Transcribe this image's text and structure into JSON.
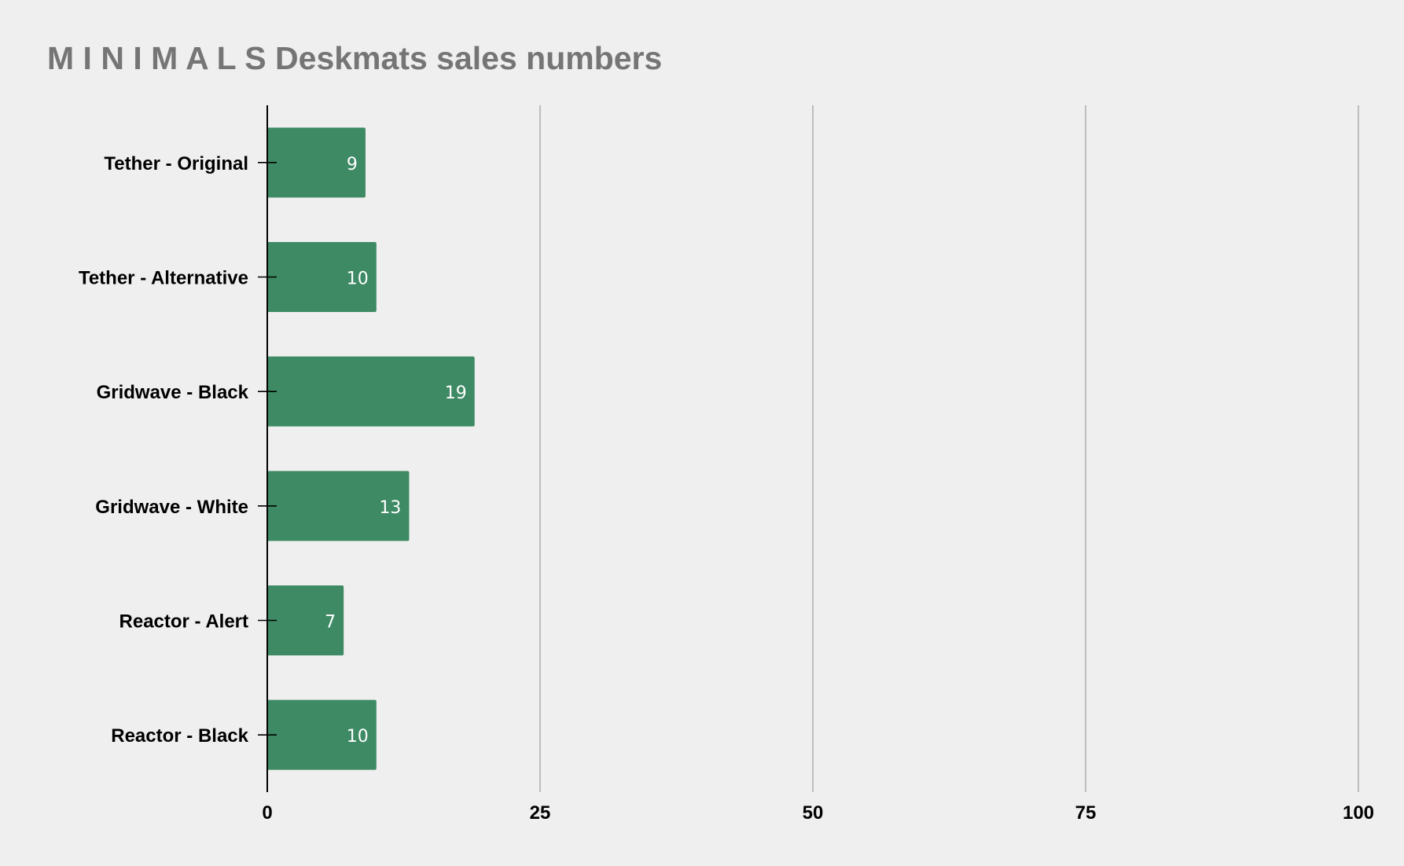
{
  "chart_data": {
    "type": "bar",
    "orientation": "horizontal",
    "title": "M I N I M A L S Deskmats sales numbers",
    "categories": [
      "Tether - Original",
      "Tether - Alternative",
      "Gridwave - Black",
      "Gridwave - White",
      "Reactor - Alert",
      "Reactor - Black"
    ],
    "values": [
      9,
      10,
      19,
      13,
      7,
      10
    ],
    "xlim": [
      0,
      100
    ],
    "xticks": [
      0,
      25,
      50,
      75,
      100
    ],
    "xlabel": "",
    "ylabel": "",
    "grid": true,
    "legend": "none",
    "bar_color": "#3d8a64",
    "title_color": "#757575",
    "label_color": "#000000",
    "data_label_color": "#ffffff",
    "grid_color": "#bdbdbd",
    "background_color": "#efefef"
  }
}
